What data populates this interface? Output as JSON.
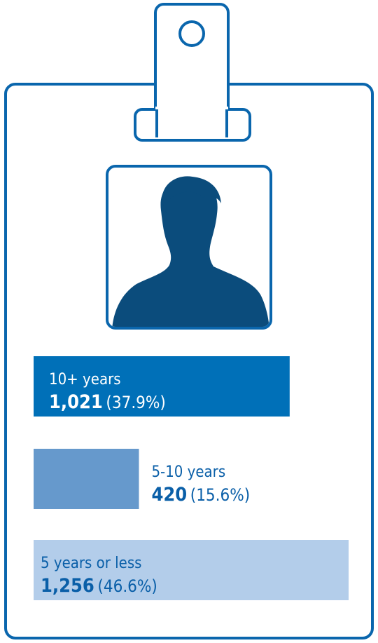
{
  "chart_data": {
    "type": "bar",
    "categories": [
      "10+ years",
      "5-10 years",
      "5 years or less"
    ],
    "values": [
      1021,
      420,
      1256
    ],
    "value_labels": [
      "1,021",
      "420",
      "1,256"
    ],
    "percent_labels": [
      "(37.9%)",
      "(15.6%)",
      "(46.6%)"
    ],
    "colors": [
      "#0070b8",
      "#6699cc",
      "#b3cdea"
    ],
    "xlim": [
      0,
      1256
    ]
  }
}
